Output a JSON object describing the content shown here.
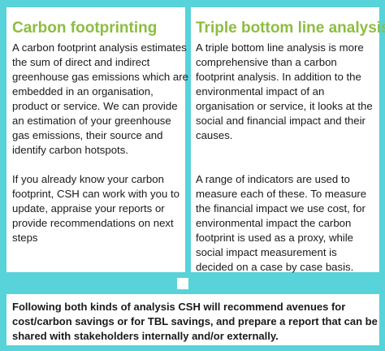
{
  "left": {
    "heading": "Carbon footprinting",
    "para1": [
      "A carbon footprint analysis estimates",
      "the sum of direct and indirect",
      "greenhouse gas emissions which are",
      "embedded in an organisation,",
      "product or service. We can provide",
      "an estimation of your greenhouse",
      "gas emissions, their source and",
      "identify carbon hotspots."
    ],
    "para2": [
      "If you already know your carbon",
      "footprint, CSH can work with you to",
      "update, appraise your reports  or",
      "provide recommendations on next",
      "steps"
    ]
  },
  "right": {
    "heading": "Triple bottom line analysis",
    "para1": [
      "A triple bottom line analysis is more",
      "comprehensive than a carbon",
      "footprint analysis. In addition to the",
      "environmental impact of an",
      "organisation or service, it looks at the",
      "social and financial impact and their",
      "causes."
    ],
    "para2": [
      "A range of indicators are used to",
      "measure each of these. To measure",
      "the financial impact we use cost, for",
      "environmental impact the carbon",
      "footprint is used as a proxy, while",
      "social impact measurement is",
      "decided on a case by case basis."
    ]
  },
  "bottom": {
    "lines": [
      "Following both kinds of analysis CSH will recommend avenues for",
      "cost/carbon savings or for TBL savings, and prepare a report that can be",
      "shared with stakeholders internally and/or externally."
    ]
  }
}
